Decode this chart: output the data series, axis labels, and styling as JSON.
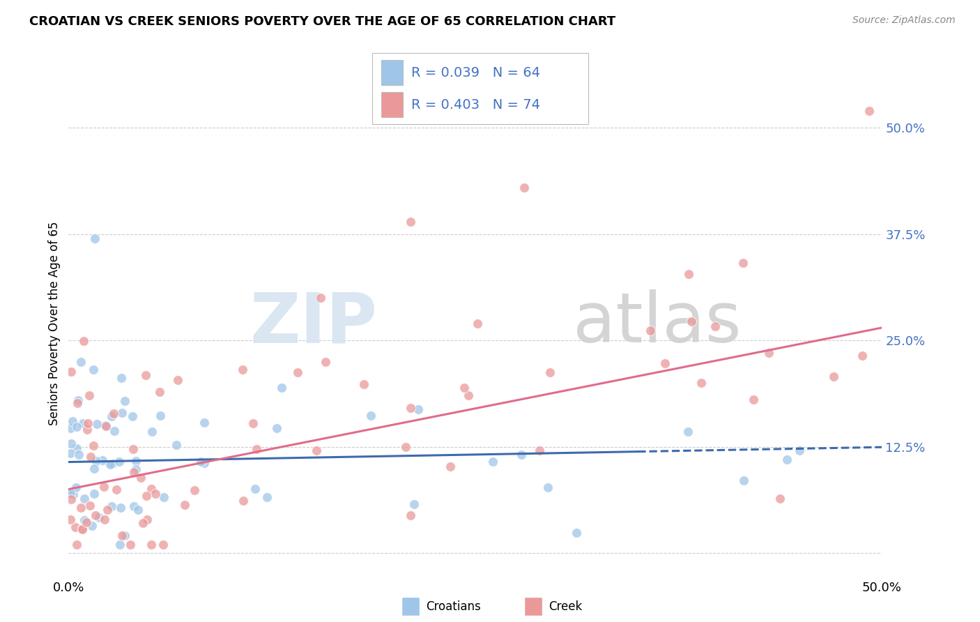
{
  "title": "CROATIAN VS CREEK SENIORS POVERTY OVER THE AGE OF 65 CORRELATION CHART",
  "source": "Source: ZipAtlas.com",
  "ylabel": "Seniors Poverty Over the Age of 65",
  "xlim": [
    0.0,
    0.5
  ],
  "ylim": [
    -0.03,
    0.57
  ],
  "ytick_vals": [
    0.0,
    0.125,
    0.25,
    0.375,
    0.5
  ],
  "ytick_labels": [
    "",
    "12.5%",
    "25.0%",
    "37.5%",
    "50.0%"
  ],
  "xtick_vals": [
    0.0,
    0.5
  ],
  "xtick_labels": [
    "0.0%",
    "50.0%"
  ],
  "croatian_R": 0.039,
  "croatian_N": 64,
  "creek_R": 0.403,
  "creek_N": 74,
  "croatian_color": "#9fc5e8",
  "creek_color": "#ea9999",
  "trendline_blue_color": "#3d6bac",
  "trendline_pink_color": "#e06c8a",
  "grid_color": "#cccccc",
  "background_color": "#ffffff",
  "legend_text_color": "#4472c4",
  "watermark_zip_color": "#d6e4f0",
  "watermark_atlas_color": "#d0d0d0",
  "bottom_legend_labels": [
    "Croatians",
    "Creek"
  ],
  "legend_R_labels": [
    "R = 0.039",
    "R = 0.403"
  ],
  "legend_N_labels": [
    "N = 64",
    "N = 74"
  ]
}
